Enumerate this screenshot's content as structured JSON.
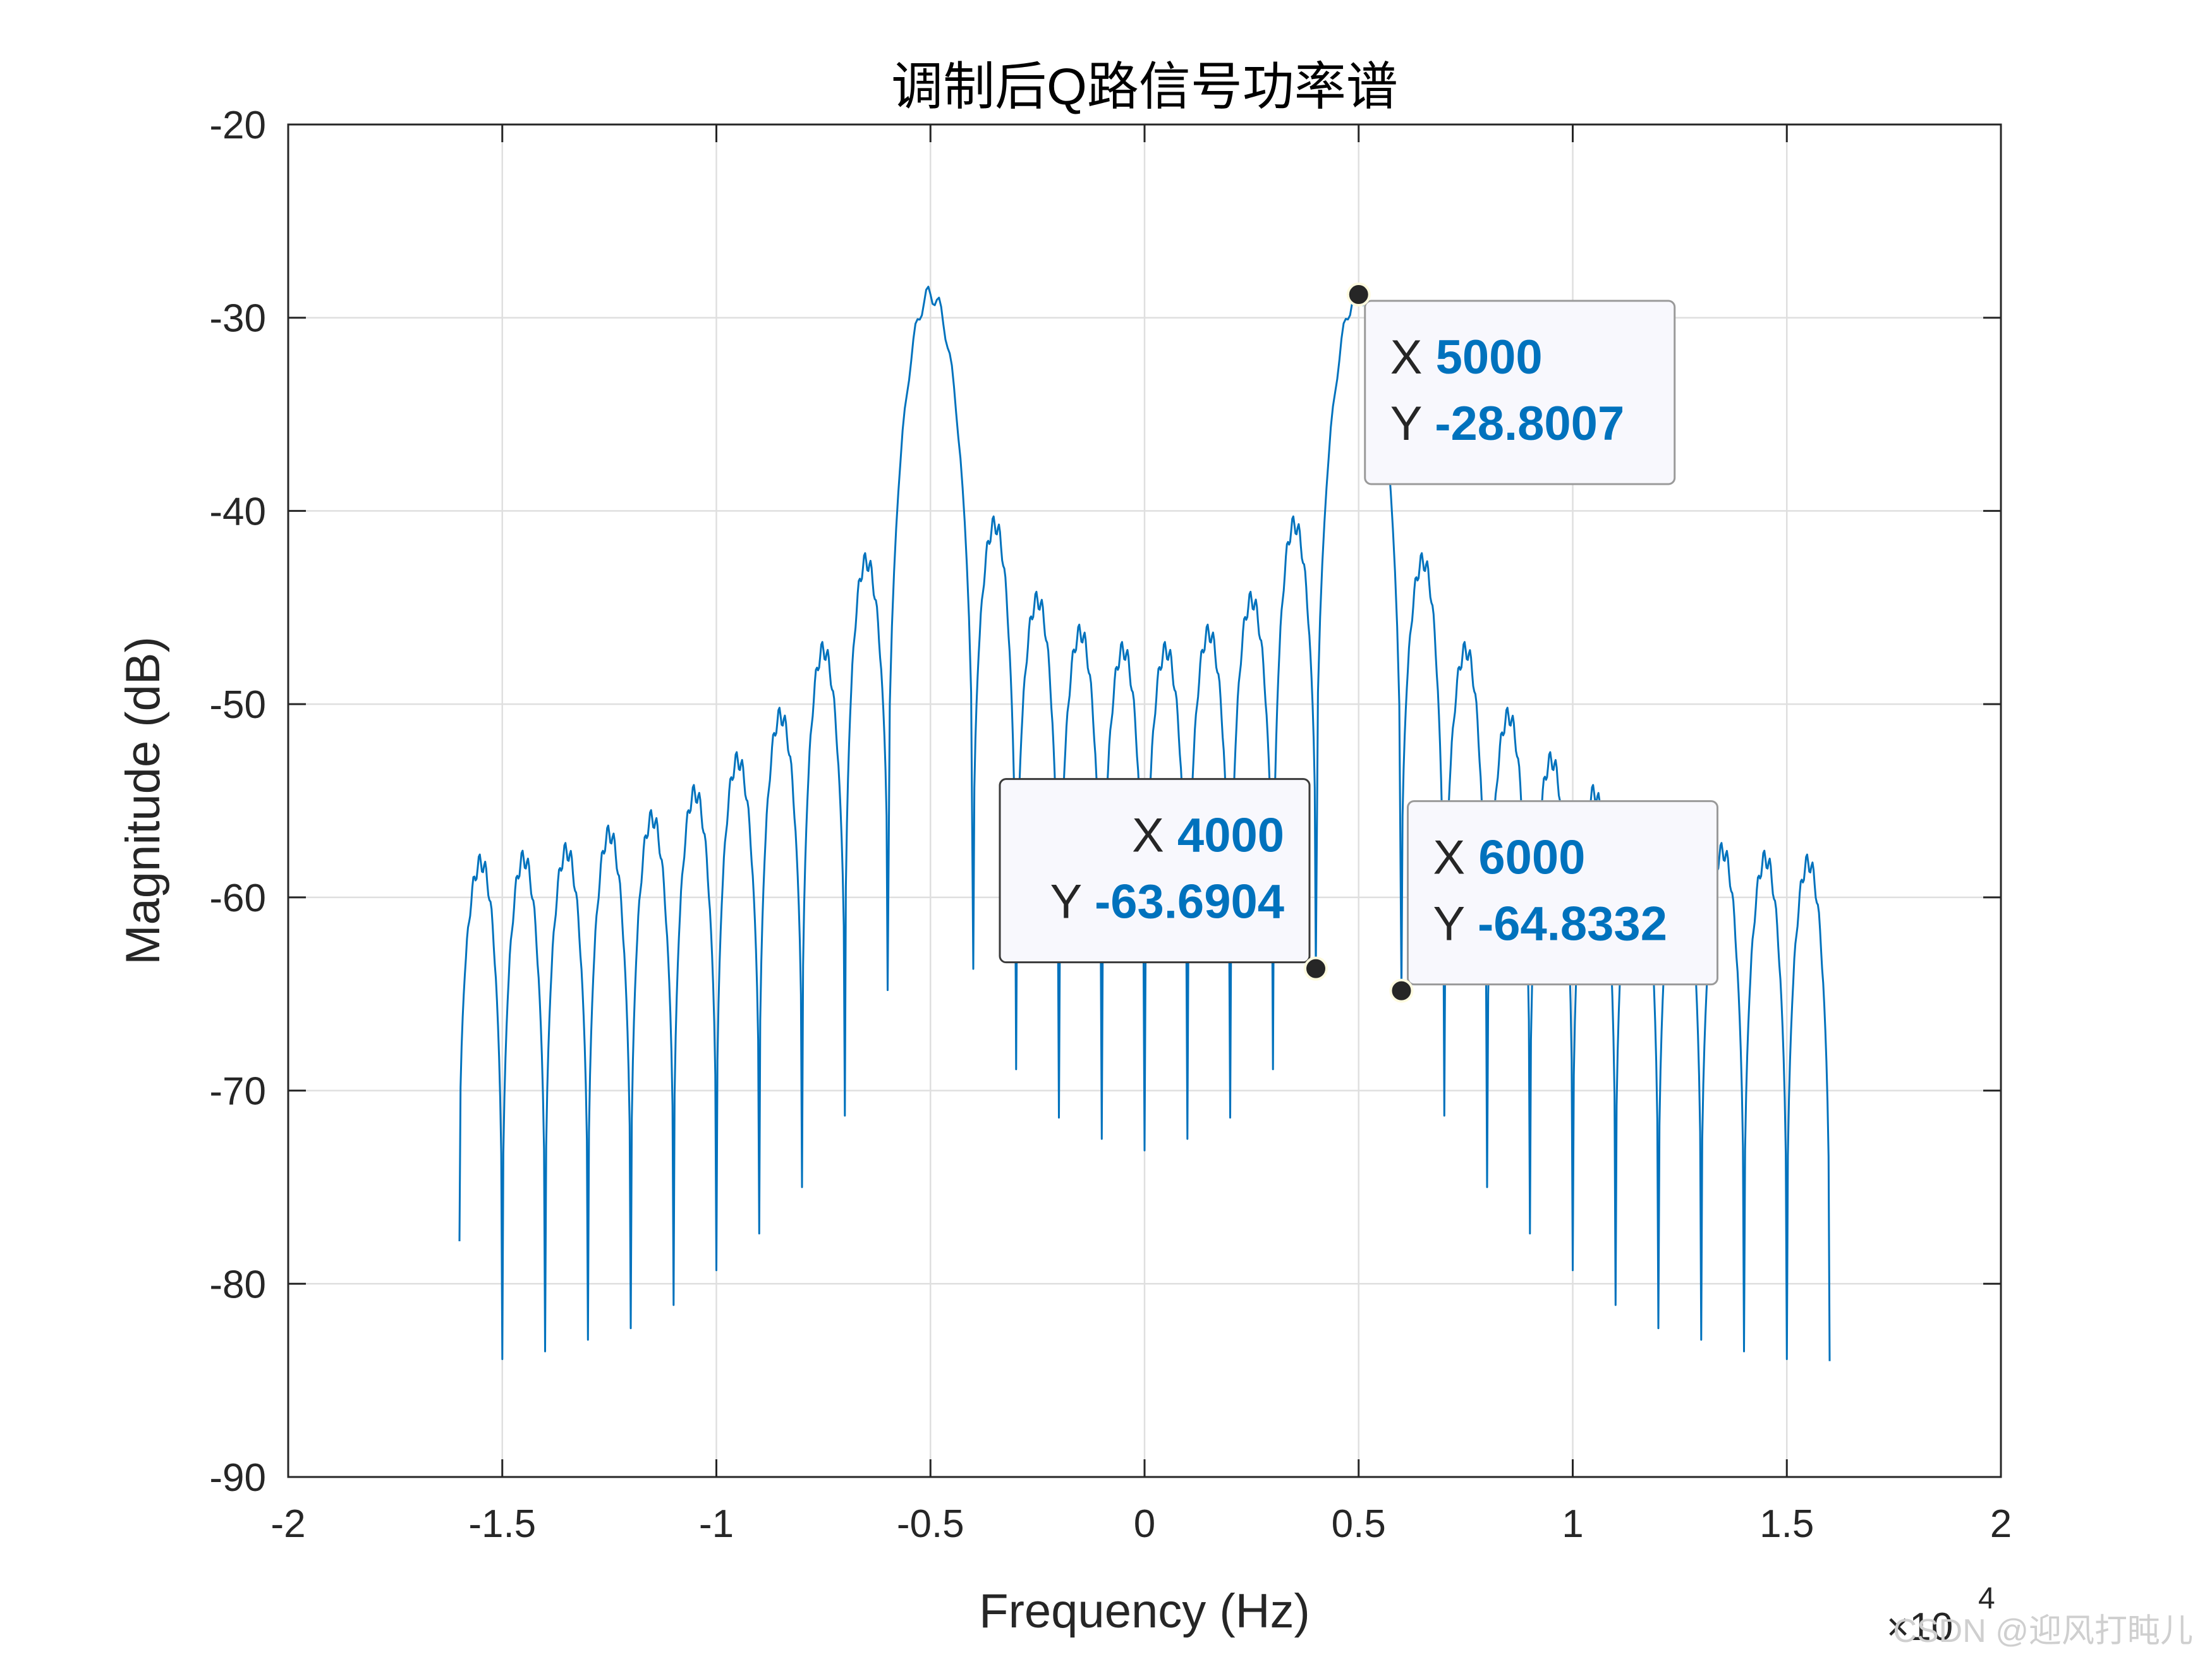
{
  "chart_data": {
    "type": "line",
    "title": "调制后Q路信号功率谱",
    "xlabel": "Frequency (Hz)",
    "ylabel": "Magnitude (dB)",
    "x_exponent_label": "×10",
    "x_exponent_power": "4",
    "xlim": [
      -20000,
      20000
    ],
    "ylim": [
      -90,
      -20
    ],
    "xticks": [
      -20000,
      -15000,
      -10000,
      -5000,
      0,
      5000,
      10000,
      15000,
      20000
    ],
    "xtick_labels": [
      "-2",
      "-1.5",
      "-1",
      "-0.5",
      "0",
      "0.5",
      "1",
      "1.5",
      "2"
    ],
    "yticks": [
      -20,
      -30,
      -40,
      -50,
      -60,
      -70,
      -80,
      -90
    ],
    "ytick_labels": [
      "-20",
      "-30",
      "-40",
      "-50",
      "-60",
      "-70",
      "-80",
      "-90"
    ],
    "grid": true,
    "line_color": "#0072BD",
    "x_range": [
      -16000,
      16000
    ],
    "null_spacing_hz": 1000,
    "main_lobe_centers": [
      -5000,
      5000
    ],
    "lobe_peaks": [
      {
        "x": -15500,
        "y": -58.2
      },
      {
        "x": -14500,
        "y": -58.0
      },
      {
        "x": -13500,
        "y": -57.6
      },
      {
        "x": -12500,
        "y": -56.7
      },
      {
        "x": -11500,
        "y": -55.9
      },
      {
        "x": -10500,
        "y": -54.6
      },
      {
        "x": -9500,
        "y": -52.9
      },
      {
        "x": -8500,
        "y": -50.6
      },
      {
        "x": -7500,
        "y": -47.2
      },
      {
        "x": -6500,
        "y": -42.6
      },
      {
        "x": -5000,
        "y": -28.8
      },
      {
        "x": -3500,
        "y": -40.7
      },
      {
        "x": -2500,
        "y": -44.6
      },
      {
        "x": -1500,
        "y": -46.3
      },
      {
        "x": -500,
        "y": -47.2
      },
      {
        "x": 500,
        "y": -47.2
      },
      {
        "x": 1500,
        "y": -46.3
      },
      {
        "x": 2500,
        "y": -44.6
      },
      {
        "x": 3500,
        "y": -40.7
      },
      {
        "x": 5000,
        "y": -28.8
      },
      {
        "x": 6500,
        "y": -42.6
      },
      {
        "x": 7500,
        "y": -47.2
      },
      {
        "x": 8500,
        "y": -50.6
      },
      {
        "x": 9500,
        "y": -52.9
      },
      {
        "x": 10500,
        "y": -54.6
      },
      {
        "x": 11500,
        "y": -55.9
      },
      {
        "x": 12500,
        "y": -56.7
      },
      {
        "x": 13500,
        "y": -57.6
      },
      {
        "x": 14500,
        "y": -58.0
      },
      {
        "x": 15500,
        "y": -58.2
      }
    ],
    "nulls": [
      {
        "x": -16000,
        "y": -77.8
      },
      {
        "x": -15000,
        "y": -83.9
      },
      {
        "x": -14000,
        "y": -83.5
      },
      {
        "x": -13000,
        "y": -82.9
      },
      {
        "x": -12000,
        "y": -82.3
      },
      {
        "x": -11000,
        "y": -81.1
      },
      {
        "x": -10000,
        "y": -79.3
      },
      {
        "x": -9000,
        "y": -77.4
      },
      {
        "x": -8000,
        "y": -75.0
      },
      {
        "x": -7000,
        "y": -71.3
      },
      {
        "x": -6000,
        "y": -64.8
      },
      {
        "x": -4000,
        "y": -63.7
      },
      {
        "x": -3000,
        "y": -68.9
      },
      {
        "x": -2000,
        "y": -71.4
      },
      {
        "x": -1000,
        "y": -72.5
      },
      {
        "x": 0,
        "y": -73.1
      },
      {
        "x": 1000,
        "y": -72.5
      },
      {
        "x": 2000,
        "y": -71.4
      },
      {
        "x": 3000,
        "y": -68.9
      },
      {
        "x": 4000,
        "y": -63.6904
      },
      {
        "x": 6000,
        "y": -64.8332
      },
      {
        "x": 7000,
        "y": -71.3
      },
      {
        "x": 8000,
        "y": -75.0
      },
      {
        "x": 9000,
        "y": -77.4
      },
      {
        "x": 10000,
        "y": -79.3
      },
      {
        "x": 11000,
        "y": -81.1
      },
      {
        "x": 12000,
        "y": -82.3
      },
      {
        "x": 13000,
        "y": -82.9
      },
      {
        "x": 14000,
        "y": -83.5
      },
      {
        "x": 15000,
        "y": -83.9
      },
      {
        "x": 16000,
        "y": -84.0
      }
    ],
    "datatips": [
      {
        "x_label": "X",
        "x_value": "5000",
        "y_label": "Y",
        "y_value": "-28.8007",
        "x": 5000,
        "y": -28.8007,
        "box_side": "right-below"
      },
      {
        "x_label": "X",
        "x_value": "4000",
        "y_label": "Y",
        "y_value": "-63.6904",
        "x": 4000,
        "y": -63.6904,
        "box_side": "left-above"
      },
      {
        "x_label": "X",
        "x_value": "6000",
        "y_label": "Y",
        "y_value": "-64.8332",
        "x": 6000,
        "y": -64.8332,
        "box_side": "right-above"
      }
    ]
  },
  "watermark": "CSDN @迎风打盹儿"
}
